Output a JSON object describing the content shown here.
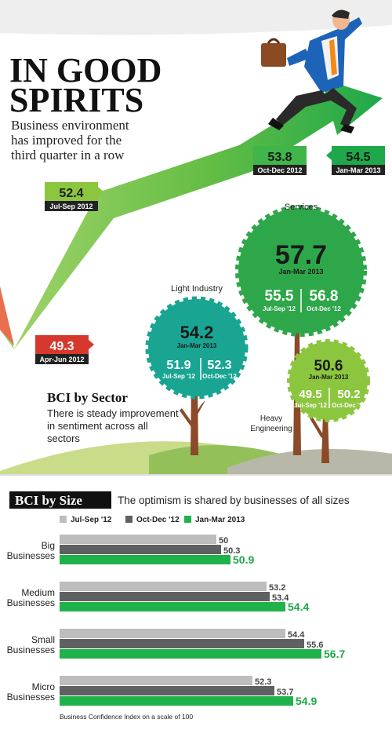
{
  "header": {
    "title_line1": "IN GOOD",
    "title_line2": "SPIRITS",
    "subtitle_line1": "Business environment",
    "subtitle_line2": "has improved for the",
    "subtitle_line3": "third quarter in a row"
  },
  "trend": {
    "points": [
      {
        "value": "49.3",
        "period": "Apr-Jun 2012",
        "color": "#d7382e"
      },
      {
        "value": "52.4",
        "period": "Jul-Sep 2012",
        "color": "#8cc63f"
      },
      {
        "value": "53.8",
        "period": "Oct-Dec 2012",
        "color": "#3fb54a"
      },
      {
        "value": "54.5",
        "period": "Jan-Mar 2013",
        "color": "#1fa84a"
      }
    ]
  },
  "sector": {
    "heading": "BCI by Sector",
    "desc_line1": "There is steady improvement",
    "desc_line2": "in sentiment across all",
    "desc_line3": "sectors",
    "trees": [
      {
        "name": "Services",
        "main": "57.7",
        "main_period": "Jan-Mar 2013",
        "a": "55.5",
        "a_period": "Jul-Sep '12",
        "b": "56.8",
        "b_period": "Oct-Dec '12",
        "color": "#2ea74a"
      },
      {
        "name": "Light Industry",
        "main": "54.2",
        "main_period": "Jan-Mar 2013",
        "a": "51.9",
        "a_period": "Jul-Sep '12",
        "b": "52.3",
        "b_period": "Oct-Dec '12",
        "color": "#19a592"
      },
      {
        "name_line1": "Heavy",
        "name_line2": "Engineering",
        "main": "50.6",
        "main_period": "Jan-Mar 2013",
        "a": "49.5",
        "a_period": "Jul-Sep '12",
        "b": "50.2",
        "b_period": "Oct-Dec '12",
        "color": "#8cc63f"
      }
    ]
  },
  "size": {
    "heading": "BCI by Size",
    "desc": "The optimism is shared by businesses of all sizes",
    "footnote": "Business Confidence Index on a scale of 100"
  },
  "colors": {
    "series1": "#bdbdbd",
    "series2": "#5f6062",
    "series3": "#1fb24a",
    "label3": "#1fa84a"
  },
  "chart_data": {
    "type": "bar",
    "orientation": "horizontal",
    "title": "BCI by Size",
    "categories": [
      [
        "Big",
        "Businesses"
      ],
      [
        "Medium",
        "Businesses"
      ],
      [
        "Small",
        "Businesses"
      ],
      [
        "Micro",
        "Businesses"
      ]
    ],
    "series": [
      {
        "name": "Jul-Sep '12",
        "values": [
          50,
          53.2,
          54.4,
          52.3
        ]
      },
      {
        "name": "Oct-Dec '12",
        "values": [
          50.3,
          53.4,
          55.6,
          53.7
        ]
      },
      {
        "name": "Jan-Mar 2013",
        "values": [
          50.9,
          54.4,
          56.7,
          54.9
        ]
      }
    ],
    "value_labels": [
      [
        "50",
        "50.3",
        "50.9"
      ],
      [
        "53.2",
        "53.4",
        "54.4"
      ],
      [
        "54.4",
        "55.6",
        "56.7"
      ],
      [
        "52.3",
        "53.7",
        "54.9"
      ]
    ],
    "xlim": [
      0,
      60
    ],
    "legend": "top",
    "grid": false
  }
}
